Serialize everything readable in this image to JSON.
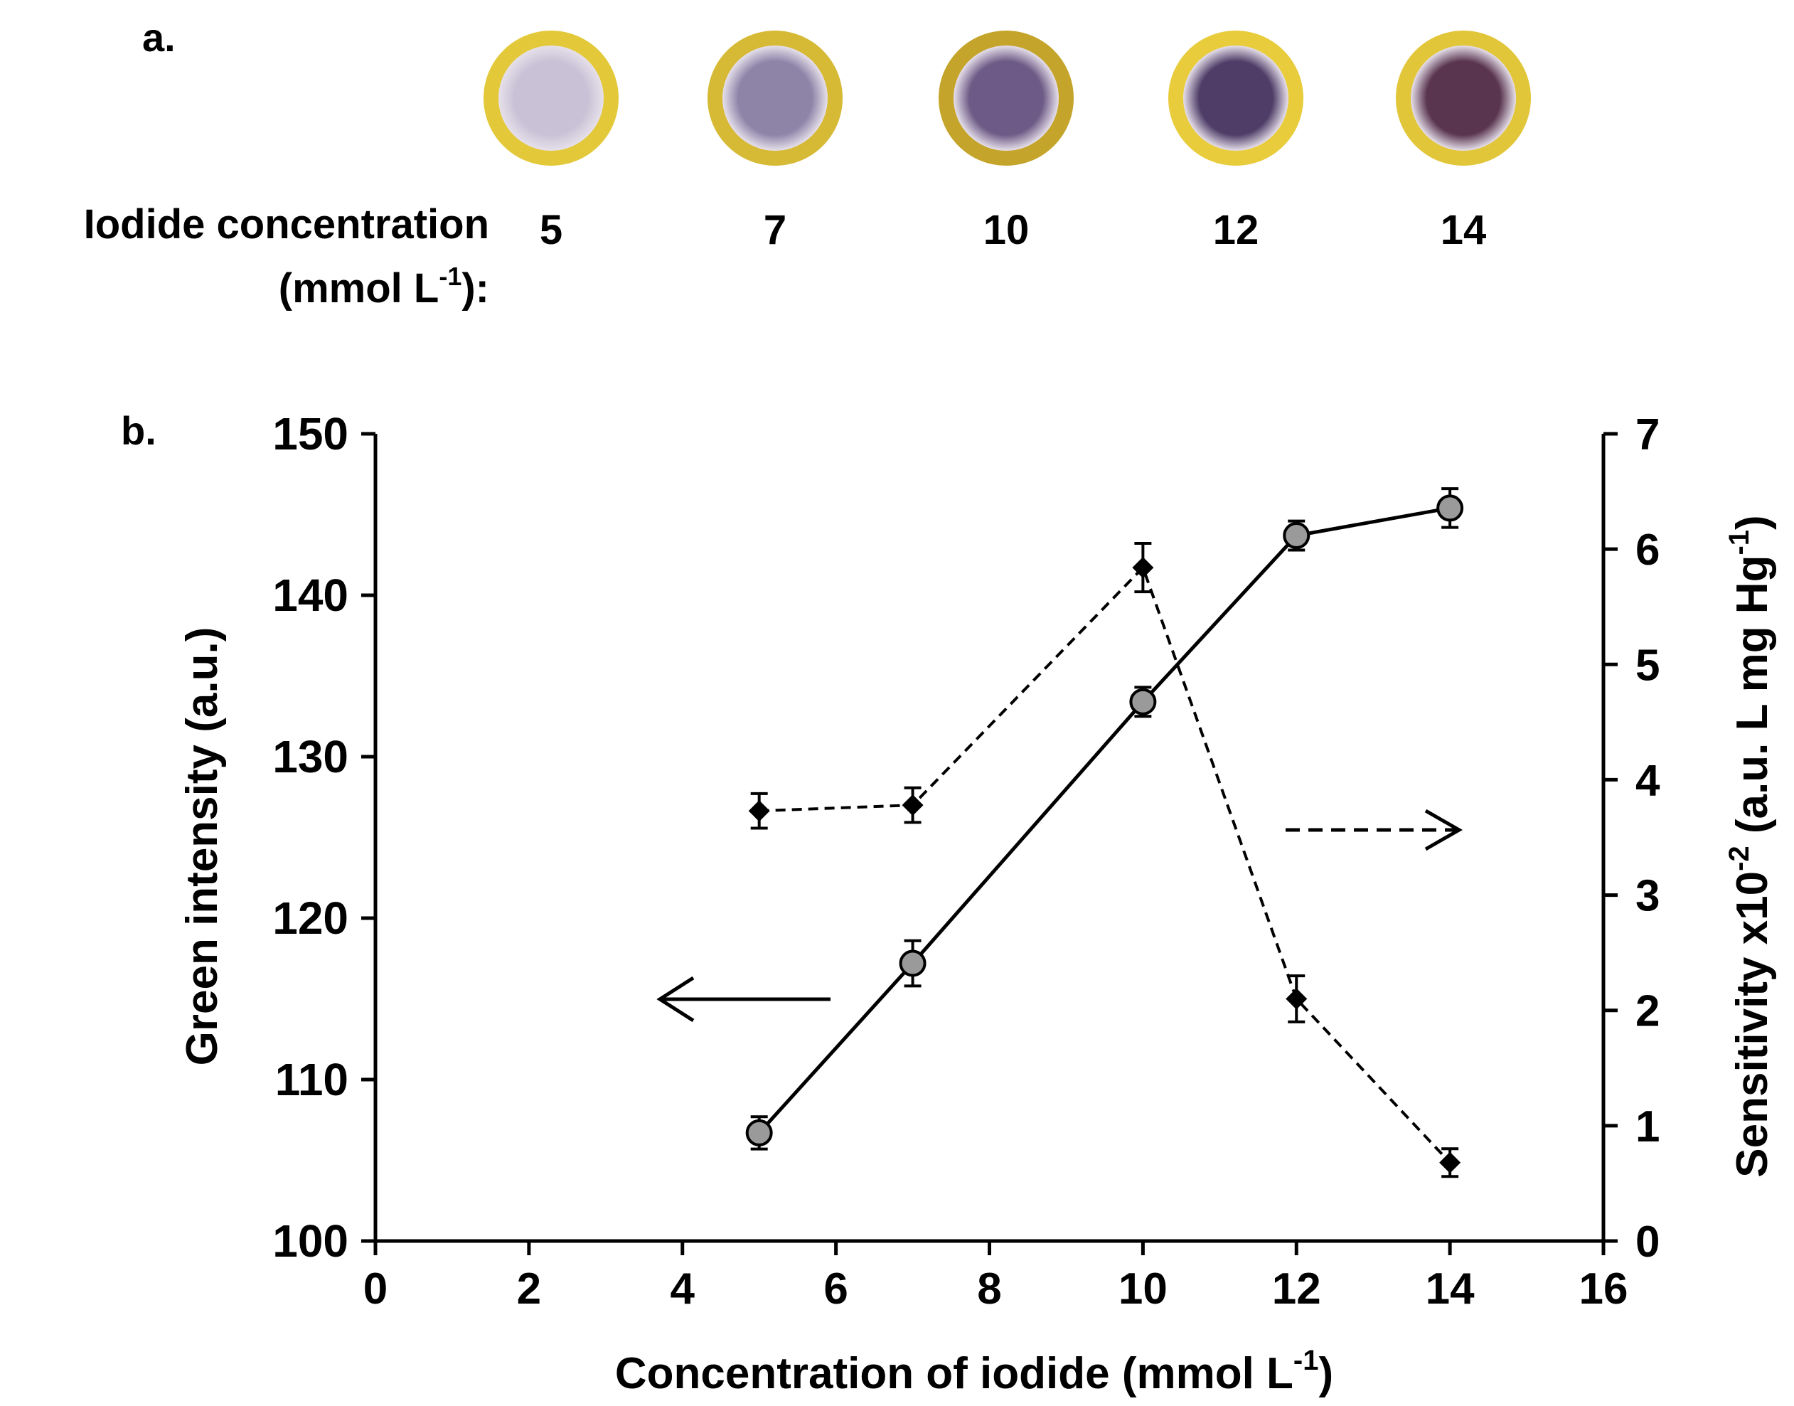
{
  "panel_a": {
    "label": "a.",
    "row_label_line1": "Iodide concentration",
    "row_label_line2": "(mmol L",
    "row_label_sup": "-1",
    "row_label_end": "):",
    "spots": [
      {
        "concentration": "5",
        "center_color": "#c9c2d6",
        "ring_color": "#e3c93a"
      },
      {
        "concentration": "7",
        "center_color": "#8d84a8",
        "ring_color": "#d6b935"
      },
      {
        "concentration": "10",
        "center_color": "#6e5a86",
        "ring_color": "#c4a42a"
      },
      {
        "concentration": "12",
        "center_color": "#4f3d68",
        "ring_color": "#e8cc3c"
      },
      {
        "concentration": "14",
        "center_color": "#5a3550",
        "ring_color": "#e2c63a"
      }
    ]
  },
  "chart_data": {
    "type": "line",
    "panel_label": "b.",
    "xlabel": "Concentration of iodide (mmol L",
    "xlabel_sup": "-1",
    "xlabel_end": ")",
    "ylabel": "Green intensity (a.u.)",
    "y2label": "Sensitivity x10",
    "y2label_sup1": "-2",
    "y2label_mid": " (a.u. L mg Hg",
    "y2label_sup2": "-1",
    "y2label_end": ")",
    "xlim": [
      0,
      16
    ],
    "ylim": [
      100,
      150
    ],
    "y2lim": [
      0,
      7
    ],
    "xticks": [
      0,
      2,
      4,
      6,
      8,
      10,
      12,
      14,
      16
    ],
    "yticks": [
      100,
      110,
      120,
      130,
      140,
      150
    ],
    "y2ticks": [
      0,
      1,
      2,
      3,
      4,
      5,
      6,
      7
    ],
    "grid": false,
    "series": [
      {
        "axis": "left",
        "style": "solid",
        "marker": "circle",
        "marker_color": "#9a9a9a",
        "x": [
          5,
          7,
          10,
          12,
          14
        ],
        "y": [
          106.7,
          117.2,
          133.4,
          143.7,
          145.4
        ],
        "err": [
          1.0,
          1.4,
          0.9,
          0.9,
          1.2
        ]
      },
      {
        "axis": "right",
        "style": "dashed",
        "marker": "diamond",
        "marker_color": "#000000",
        "x": [
          5,
          7,
          10,
          12,
          14
        ],
        "y": [
          3.73,
          3.78,
          5.84,
          2.1,
          0.68
        ],
        "err": [
          0.15,
          0.15,
          0.21,
          0.2,
          0.12
        ]
      }
    ],
    "annotations": [
      {
        "type": "arrow",
        "direction": "left",
        "style": "solid",
        "points_to": "left-axis"
      },
      {
        "type": "arrow",
        "direction": "right",
        "style": "dashed",
        "points_to": "right-axis"
      }
    ]
  }
}
